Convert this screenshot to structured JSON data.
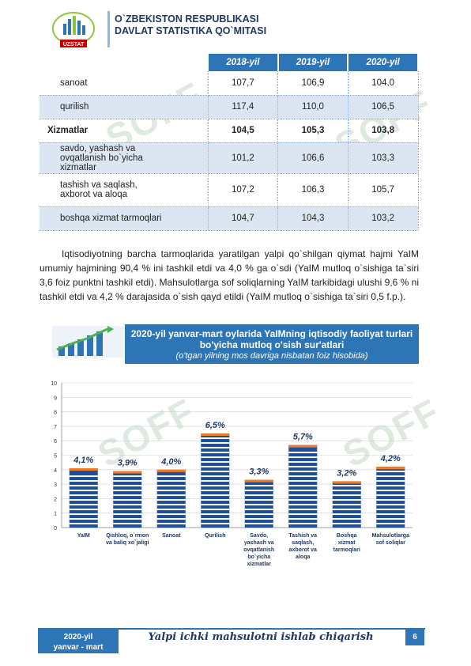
{
  "header": {
    "logo_text": "UZSTAT",
    "title_line1": "O`ZBEKISTON RESPUBLIKASI",
    "title_line2": "DAVLAT STATISTIKA QO`MITASI"
  },
  "watermark": "SOFF",
  "table": {
    "columns": [
      "2018-yil",
      "2019-yil",
      "2020-yil"
    ],
    "rows": [
      {
        "label": "sanoat",
        "values": [
          "107,7",
          "106,9",
          "104,0"
        ]
      },
      {
        "label": "qurilish",
        "values": [
          "117,4",
          "110,0",
          "106,5"
        ]
      },
      {
        "label": "Xizmatlar",
        "values": [
          "104,5",
          "105,3",
          "103,8"
        ]
      },
      {
        "label": "savdo, yashash va ovqatlanish bo`yicha xizmatlar",
        "values": [
          "101,2",
          "106,6",
          "103,3"
        ]
      },
      {
        "label": "tashish va saqlash, axborot va aloqa",
        "values": [
          "107,2",
          "106,3",
          "105,7"
        ]
      },
      {
        "label": "boshqa xizmat tarmoqlari",
        "values": [
          "104,7",
          "104,3",
          "103,2"
        ]
      }
    ]
  },
  "paragraph": "Iqtisodiyotning barcha tarmoqlarida yaratilgan yalpi qo`shilgan qiymat hajmi YaIM umumiy hajmining 90,4 % ini tashkil etdi va 4,0 % ga o`sdi (YaIM mutloq o`sishiga ta`siri 3,6 foiz punktni tashkil etdi). Mahsulotlarga sof soliqlarning YaIM tarkibidagi ulushi 9,6 % ni tashkil etdi va 4,2 % darajasida o`sish qayd etildi (YaIM mutloq o`sishiga ta`siri 0,5 f.p.).",
  "chart_header": {
    "line1": "2020-yil yanvar-mart oylarida YaIMning iqtisodiy faoliyat turlari",
    "line2": "bo'yicha mutloq o'sish sur'atlari",
    "line3": "(o'tgan yilning mos davriga nisbatan foiz hisobida)"
  },
  "chart_data": {
    "type": "bar",
    "title": "",
    "xlabel": "",
    "ylabel": "",
    "ylim": [
      0,
      10
    ],
    "yticks": [
      "0",
      "1",
      "2",
      "3",
      "4",
      "5",
      "6",
      "7",
      "8",
      "9",
      "10"
    ],
    "categories": [
      [
        "YaIM"
      ],
      [
        "Qishloq, o`rmon",
        "va baliq xo`jaligi"
      ],
      [
        "Sanoat"
      ],
      [
        "Qurilish"
      ],
      [
        "Savdo,",
        "yashash va",
        "ovqatlanish",
        "bo`yicha",
        "xizmatlar"
      ],
      [
        "Tashish va",
        "saqlash,",
        "axborot va",
        "aloqa"
      ],
      [
        "Boshqa",
        "xizmat",
        "tarmoqlari"
      ],
      [
        "Mahsulotlarga",
        "sof soliqlar"
      ]
    ],
    "values": [
      4.1,
      3.9,
      4.0,
      6.5,
      3.3,
      5.7,
      3.2,
      4.2
    ],
    "labels": [
      "4,1%",
      "3,9%",
      "4,0%",
      "6,5%",
      "3,3%",
      "5,7%",
      "3,2%",
      "4,2%"
    ],
    "colors": {
      "bar": "#1f4fa0",
      "stripe": "#ffffff",
      "top": "#f47b20",
      "label": "#1f3864"
    }
  },
  "footer": {
    "left_line1": "2020-yil",
    "left_line2": "yanvar - mart",
    "center": "Yalpi ichki mahsulotni ishlab chiqarish",
    "page": "6"
  }
}
